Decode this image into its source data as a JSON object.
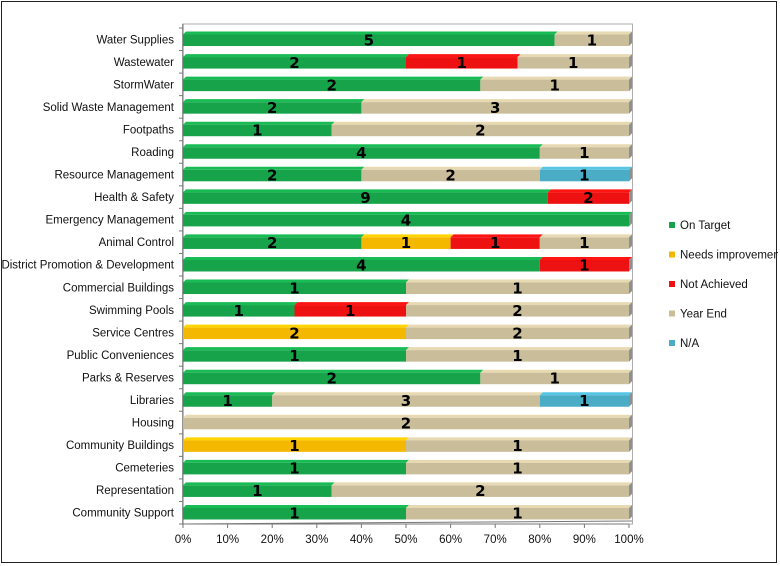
{
  "chart_data": {
    "type": "bar",
    "orientation": "horizontal",
    "stacked": "100%",
    "categories": [
      "Water Supplies",
      "Wastewater",
      "StormWater",
      "Solid Waste Management",
      "Footpaths",
      "Roading",
      "Resource Management",
      "Health & Safety",
      "Emergency Management",
      "Animal Control",
      "District Promotion & Development",
      "Commercial Buildings",
      "Swimming Pools",
      "Service Centres",
      "Public Conveniences",
      "Parks & Reserves",
      "Libraries",
      "Housing",
      "Community Buildings",
      "Cemeteries",
      "Representation",
      "Community Support"
    ],
    "series": [
      {
        "name": "On Target",
        "color": "#16a34a",
        "values": [
          5,
          2,
          2,
          2,
          1,
          4,
          2,
          9,
          4,
          2,
          4,
          1,
          1,
          0,
          1,
          2,
          1,
          0,
          0,
          1,
          1,
          1
        ]
      },
      {
        "name": "Needs improvement",
        "color": "#f5b800",
        "values": [
          0,
          0,
          0,
          0,
          0,
          0,
          0,
          0,
          0,
          1,
          0,
          0,
          0,
          2,
          0,
          0,
          0,
          0,
          1,
          0,
          0,
          0
        ]
      },
      {
        "name": "Not Achieved",
        "color": "#ee1111",
        "values": [
          0,
          1,
          0,
          0,
          0,
          0,
          0,
          2,
          0,
          1,
          1,
          0,
          1,
          0,
          0,
          0,
          0,
          0,
          0,
          0,
          0,
          0
        ]
      },
      {
        "name": "Year End",
        "color": "#c9bd9a",
        "values": [
          1,
          1,
          1,
          3,
          2,
          1,
          2,
          0,
          0,
          1,
          0,
          1,
          2,
          2,
          1,
          1,
          3,
          2,
          1,
          1,
          2,
          1
        ]
      },
      {
        "name": "N/A",
        "color": "#4bacc6",
        "values": [
          0,
          0,
          0,
          0,
          0,
          0,
          1,
          0,
          0,
          0,
          0,
          0,
          0,
          0,
          0,
          0,
          1,
          0,
          0,
          0,
          0,
          0
        ]
      }
    ],
    "xlim": [
      0,
      100
    ],
    "xticks": [
      "0%",
      "10%",
      "20%",
      "30%",
      "40%",
      "50%",
      "60%",
      "70%",
      "80%",
      "90%",
      "100%"
    ],
    "grid": false,
    "legend": "right"
  }
}
